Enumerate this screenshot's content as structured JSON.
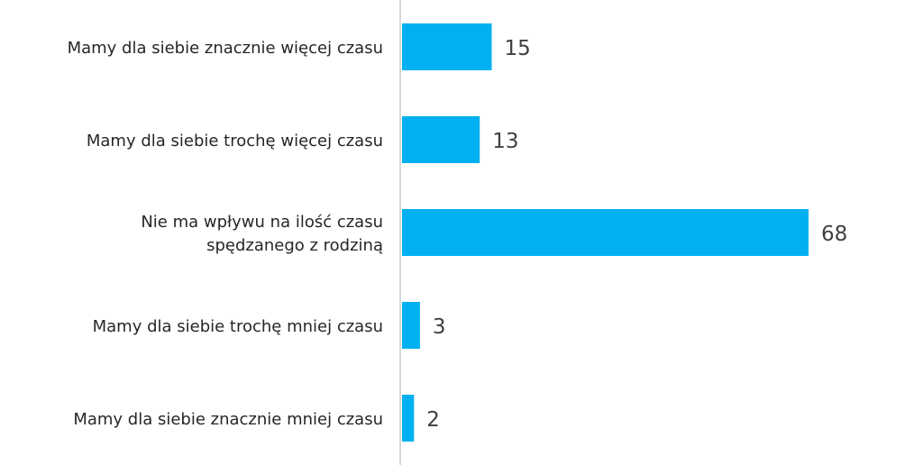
{
  "chart_data": {
    "type": "bar",
    "orientation": "horizontal",
    "categories": [
      [
        "Mamy dla siebie znacznie więcej czasu"
      ],
      [
        "Mamy dla siebie trochę więcej czasu"
      ],
      [
        "Nie ma wpływu na ilość czasu",
        "spędzanego z rodziną"
      ],
      [
        "Mamy dla siebie trochę mniej czasu"
      ],
      [
        "Mamy dla siebie znacznie mniej czasu"
      ]
    ],
    "values": [
      15,
      13,
      68,
      3,
      2
    ],
    "data_labels": [
      "15",
      "13",
      "68",
      "3",
      "2"
    ],
    "xlim": [
      0,
      70
    ],
    "grid": false,
    "legend": "none",
    "colors": {
      "bar": "#00b0f0",
      "axis": "#d9d9d9",
      "label": "#262626",
      "value": "#404040"
    }
  }
}
